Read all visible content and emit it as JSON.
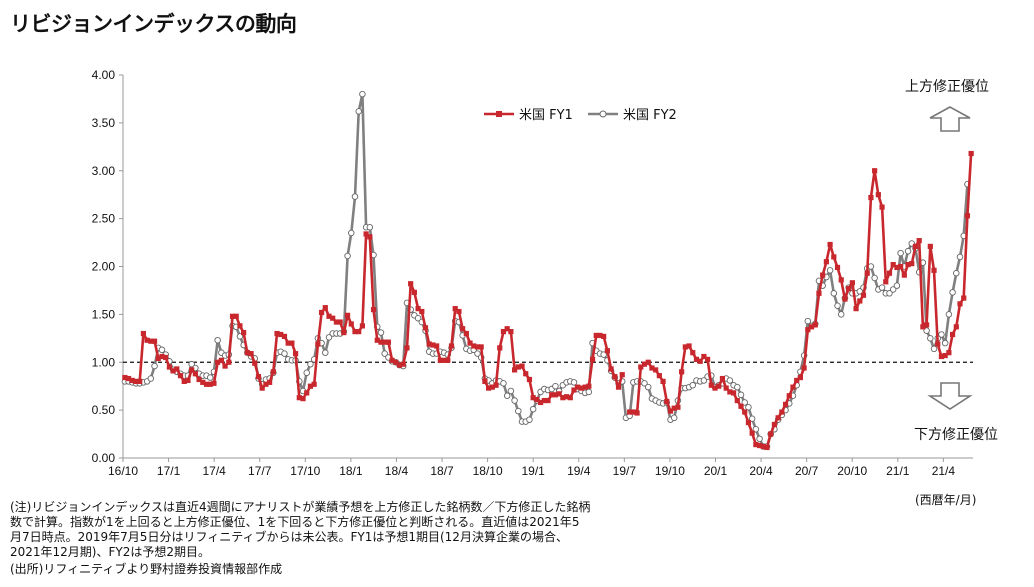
{
  "title": "リビジョンインデックスの動向",
  "notes": [
    "(注)リビジョンインデックスは直近4週間にアナリストが業績予想を上方修正した銘柄数／下方修正した銘柄",
    "数で計算。指数が1を上回ると上方修正優位、1を下回ると下方修正優位と判断される。直近値は2021年5",
    "月7日時点。2019年7月5日分はリフィニティブからは未公表。FY1は予想1期目(12月決算企業の場合、",
    "2021年12月期)、FY2は予想2期目。",
    "(出所)リフィニティブより野村證券投資情報部作成"
  ],
  "unit_label": "(西暦年/月)",
  "upper_label": "上方修正優位",
  "lower_label": "下方修正優位",
  "colors": {
    "fy1": "#c8282d",
    "fy2": "#808080",
    "axis": "#999999"
  },
  "chart_data": {
    "type": "line",
    "x_unit": "weekly, 2016/10 – 2021/5",
    "xlim": [
      "2016/10",
      "2021/5"
    ],
    "ylim": [
      0,
      4
    ],
    "y_ticks": [
      "0.00",
      "0.50",
      "1.00",
      "1.50",
      "2.00",
      "2.50",
      "3.00",
      "3.50",
      "4.00"
    ],
    "x_tick_labels": [
      "16/10",
      "17/1",
      "17/4",
      "17/7",
      "17/10",
      "18/1",
      "18/4",
      "18/7",
      "18/10",
      "19/1",
      "19/4",
      "19/7",
      "19/10",
      "20/1",
      "20/4",
      "20/7",
      "20/10",
      "21/1",
      "21/4"
    ],
    "reference_line": 1.0,
    "legend_position": "top-center",
    "series": [
      {
        "name": "米国 FY1",
        "values": [
          0.84,
          0.83,
          0.81,
          0.8,
          0.8,
          1.3,
          1.23,
          1.22,
          1.22,
          1.04,
          1.06,
          1.05,
          0.95,
          0.91,
          0.93,
          0.86,
          0.8,
          0.81,
          0.92,
          0.88,
          0.82,
          0.79,
          0.77,
          0.77,
          0.78,
          1.0,
          1.02,
          0.96,
          1.0,
          1.48,
          1.48,
          1.38,
          1.31,
          1.1,
          1.09,
          0.99,
          0.85,
          0.73,
          0.77,
          0.79,
          0.9,
          1.3,
          1.29,
          1.27,
          1.2,
          1.2,
          1.09,
          0.63,
          0.62,
          0.68,
          0.75,
          0.77,
          1.19,
          1.52,
          1.57,
          1.48,
          1.46,
          1.42,
          1.42,
          1.31,
          1.49,
          1.4,
          1.32,
          1.32,
          1.38,
          2.34,
          2.31,
          1.55,
          1.23,
          1.21,
          1.21,
          1.21,
          1.02,
          1.0,
          0.97,
          0.98,
          1.15,
          1.82,
          1.73,
          1.56,
          1.53,
          1.36,
          1.19,
          1.18,
          1.17,
          1.02,
          1.02,
          1.02,
          1.17,
          1.56,
          1.53,
          1.35,
          1.3,
          1.2,
          1.17,
          1.16,
          1.16,
          0.8,
          0.73,
          0.74,
          0.76,
          1.15,
          1.32,
          1.35,
          1.32,
          0.92,
          0.95,
          0.96,
          0.88,
          0.82,
          0.63,
          0.61,
          0.58,
          0.6,
          0.6,
          0.66,
          0.66,
          0.67,
          0.63,
          0.64,
          0.63,
          0.71,
          0.74,
          0.73,
          0.74,
          0.75,
          1.03,
          1.28,
          1.28,
          1.27,
          1.12,
          0.93,
          0.85,
          0.74,
          0.87,
          null,
          0.48,
          0.48,
          0.47,
          0.95,
          0.98,
          1.0,
          0.94,
          0.92,
          0.86,
          0.8,
          0.59,
          0.49,
          0.52,
          0.53,
          0.9,
          1.16,
          1.17,
          1.1,
          1.03,
          1.01,
          1.06,
          1.03,
          0.76,
          0.73,
          0.75,
          0.83,
          0.73,
          0.69,
          0.68,
          0.6,
          0.54,
          0.48,
          0.37,
          0.26,
          0.14,
          0.13,
          0.12,
          0.11,
          0.25,
          0.35,
          0.42,
          0.48,
          0.56,
          0.65,
          0.74,
          0.81,
          0.84,
          0.94,
          1.34,
          1.37,
          1.39,
          1.72,
          1.91,
          2.05,
          2.23,
          2.1,
          1.99,
          1.86,
          1.66,
          1.77,
          1.83,
          1.56,
          1.64,
          1.7,
          1.93,
          2.72,
          3.0,
          2.75,
          2.62,
          1.84,
          1.93,
          2.02,
          1.99,
          2.0,
          1.91,
          2.02,
          2.03,
          2.21,
          2.27,
          1.37,
          1.39,
          2.21,
          1.96,
          1.19,
          1.06,
          1.07,
          1.1,
          1.29,
          1.37,
          1.61,
          1.67,
          2.53,
          3.18
        ]
      },
      {
        "name": "米国 FY2",
        "values": [
          0.8,
          0.8,
          0.79,
          0.78,
          0.78,
          0.79,
          0.8,
          0.83,
          0.96,
          1.15,
          1.13,
          1.08,
          1.01,
          0.92,
          0.9,
          0.88,
          0.86,
          0.86,
          0.98,
          0.94,
          0.88,
          0.86,
          0.86,
          0.84,
          0.9,
          1.23,
          1.1,
          1.07,
          1.08,
          1.38,
          1.37,
          1.27,
          1.18,
          1.1,
          1.06,
          1.04,
          0.83,
          0.77,
          0.82,
          0.83,
          0.89,
          1.1,
          1.11,
          1.09,
          1.03,
          1.02,
          1.02,
          0.8,
          0.7,
          0.89,
          0.98,
          1.03,
          1.25,
          1.2,
          1.1,
          1.26,
          1.3,
          1.3,
          1.3,
          1.32,
          2.11,
          2.35,
          2.73,
          3.62,
          3.8,
          2.41,
          2.41,
          2.12,
          1.37,
          1.31,
          1.09,
          1.05,
          1.01,
          1.0,
          0.97,
          0.96,
          1.62,
          1.55,
          1.49,
          1.46,
          1.42,
          1.33,
          1.11,
          1.09,
          1.09,
          1.11,
          1.1,
          1.08,
          1.15,
          1.43,
          1.42,
          1.28,
          1.14,
          1.12,
          1.13,
          1.09,
          1.05,
          0.83,
          0.81,
          0.78,
          0.81,
          0.8,
          0.78,
          0.65,
          0.7,
          0.6,
          0.49,
          0.38,
          0.38,
          0.4,
          0.51,
          0.6,
          0.69,
          0.72,
          0.71,
          0.72,
          0.75,
          0.7,
          0.76,
          0.79,
          0.8,
          0.79,
          0.72,
          0.7,
          0.68,
          0.69,
          1.2,
          1.12,
          1.09,
          1.08,
          1.02,
          0.91,
          0.84,
          0.78,
          0.8,
          0.42,
          0.44,
          0.79,
          0.8,
          0.8,
          0.78,
          0.74,
          0.62,
          0.6,
          0.58,
          0.57,
          0.58,
          0.4,
          0.42,
          0.6,
          0.73,
          0.73,
          0.74,
          0.76,
          0.81,
          0.8,
          0.81,
          0.85,
          0.86,
          0.74,
          0.76,
          0.78,
          0.83,
          0.81,
          0.76,
          0.74,
          0.66,
          0.58,
          0.53,
          0.41,
          0.3,
          0.2,
          0.12,
          0.12,
          0.25,
          0.3,
          0.4,
          0.45,
          0.5,
          0.57,
          0.65,
          0.76,
          0.9,
          1.07,
          1.43,
          1.38,
          1.4,
          1.85,
          1.8,
          1.89,
          1.96,
          1.72,
          1.59,
          1.5,
          1.67,
          1.78,
          1.72,
          1.72,
          1.74,
          1.78,
          1.98,
          2.0,
          1.88,
          1.76,
          1.78,
          1.72,
          1.72,
          1.76,
          1.8,
          2.14,
          2.0,
          2.16,
          2.24,
          2.19,
          1.94,
          2.04,
          1.33,
          1.25,
          1.14,
          1.25,
          1.29,
          1.2,
          1.5,
          1.73,
          1.93,
          2.1,
          2.32,
          2.86
        ]
      }
    ]
  }
}
